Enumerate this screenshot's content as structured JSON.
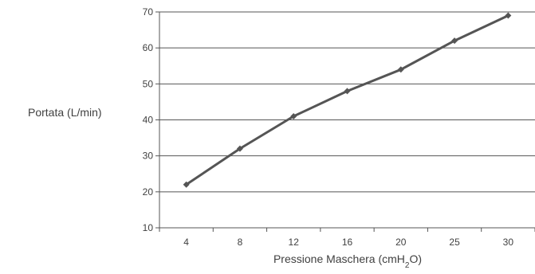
{
  "chart_data": {
    "type": "line",
    "title": "",
    "xlabel": "Pressione Maschera (cmH₂O)",
    "ylabel": "Portata (L/min)",
    "categories": [
      "4",
      "8",
      "12",
      "16",
      "20",
      "25",
      "30"
    ],
    "series": [
      {
        "values": [
          22,
          32,
          41,
          48,
          54,
          62,
          69
        ]
      }
    ],
    "ylim": [
      10,
      70
    ],
    "yticks": [
      10,
      20,
      30,
      40,
      50,
      60,
      70
    ],
    "grid": "horizontal",
    "legend": "none",
    "colors": {
      "line": "#555555",
      "marker": "#555555",
      "grid": "#555555",
      "axis": "#555555",
      "text": "#404040"
    }
  }
}
